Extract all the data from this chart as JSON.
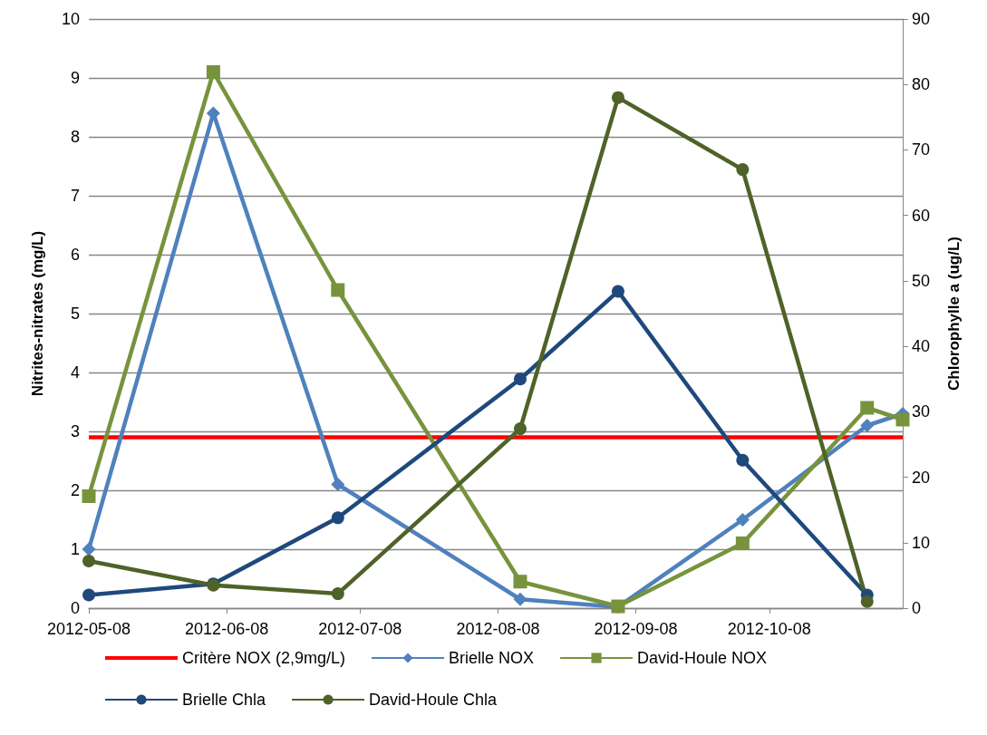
{
  "chart_data": {
    "type": "line",
    "xlim": [
      "2012-05-08",
      "2012-11-07"
    ],
    "xticks": [
      "2012-05-08",
      "2012-06-08",
      "2012-07-08",
      "2012-08-08",
      "2012-09-08",
      "2012-10-08"
    ],
    "ylabel": "Nitrites-nitrates (mg/L)",
    "ylim": [
      0,
      10
    ],
    "yticks": [
      0,
      1,
      2,
      3,
      4,
      5,
      6,
      7,
      8,
      9,
      10
    ],
    "y2label": "Chlorophylle a (ug/L)",
    "y2lim": [
      0,
      90
    ],
    "y2ticks": [
      0,
      10,
      20,
      30,
      40,
      50,
      60,
      70,
      80,
      90
    ],
    "grid": "y",
    "legend": "bottom",
    "series": [
      {
        "name": "Critère NOX (2,9mg/L)",
        "color": "#ff0000",
        "marker": "none",
        "x": [
          "2012-05-08",
          "2012-11-07"
        ],
        "values": [
          2.9,
          2.9
        ]
      },
      {
        "name": "Brielle NOX",
        "color": "#4f81bd",
        "marker": "diamond",
        "x": [
          "2012-05-08",
          "2012-06-05",
          "2012-07-03",
          "2012-08-13",
          "2012-09-04",
          "2012-10-02",
          "2012-10-30",
          "2012-11-07"
        ],
        "values": [
          1.0,
          8.4,
          2.1,
          0.15,
          0.02,
          1.5,
          3.1,
          3.3
        ]
      },
      {
        "name": "David-Houle NOX",
        "color": "#77933c",
        "marker": "square",
        "x": [
          "2012-05-08",
          "2012-06-05",
          "2012-07-03",
          "2012-08-13",
          "2012-09-04",
          "2012-10-02",
          "2012-10-30",
          "2012-11-07"
        ],
        "values": [
          1.9,
          9.1,
          5.4,
          0.45,
          0.03,
          1.1,
          3.4,
          3.2
        ]
      },
      {
        "name": "Brielle Chla",
        "color": "#1f497d",
        "marker": "circle",
        "axis": "y2",
        "x": [
          "2012-05-08",
          "2012-06-05",
          "2012-07-03",
          "2012-08-13",
          "2012-09-04",
          "2012-10-02",
          "2012-10-30"
        ],
        "values": [
          2.0,
          3.7,
          13.8,
          35.0,
          48.4,
          22.6,
          2.0
        ]
      },
      {
        "name": "David-Houle Chla",
        "color": "#4f6228",
        "marker": "circle",
        "axis": "y2",
        "x": [
          "2012-05-08",
          "2012-06-05",
          "2012-07-03",
          "2012-08-13",
          "2012-09-04",
          "2012-10-02",
          "2012-10-30"
        ],
        "values": [
          7.2,
          3.5,
          2.2,
          27.4,
          78.0,
          67.0,
          1.0
        ]
      }
    ]
  }
}
